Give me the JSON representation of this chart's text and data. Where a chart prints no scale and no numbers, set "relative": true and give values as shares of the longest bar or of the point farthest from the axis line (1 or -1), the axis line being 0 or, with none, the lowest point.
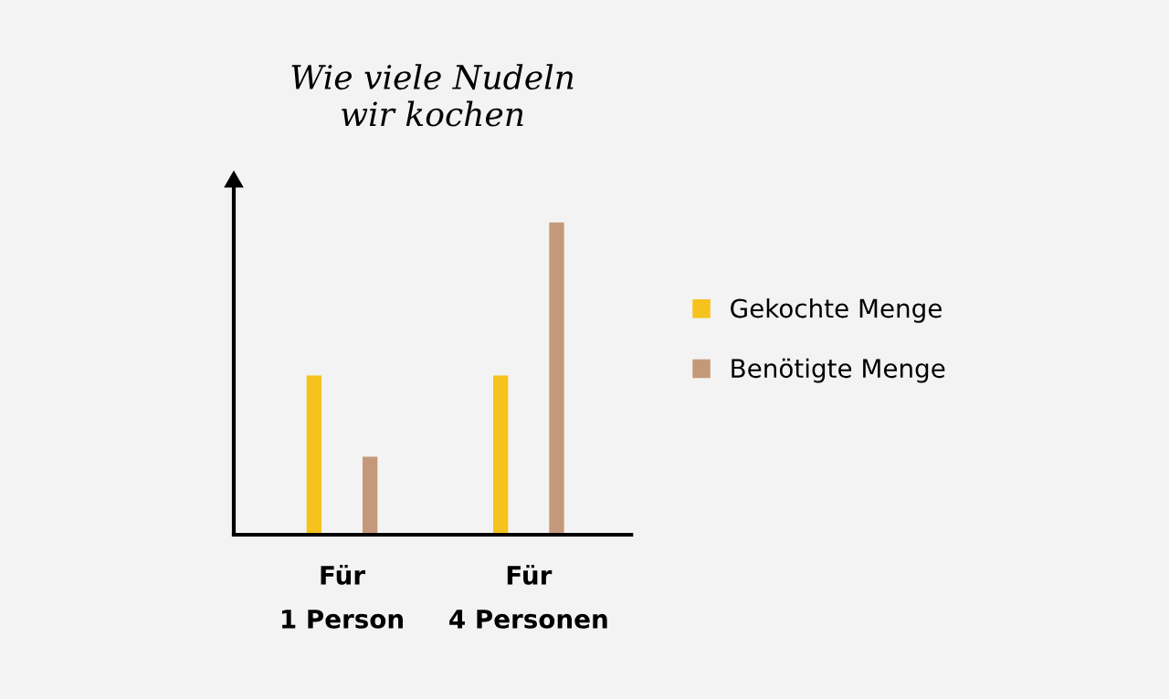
{
  "chart_data": {
    "type": "bar",
    "title": "Wie viele Nudeln\nwir kochen",
    "relative": true,
    "categories": [
      "Für\n1 Person",
      "Für\n4 Personen"
    ],
    "series": [
      {
        "name": "Gekochte Menge",
        "color": "#f6c21c",
        "values": [
          0.51,
          0.51
        ]
      },
      {
        "name": "Benötigte Menge",
        "color": "#c4997a",
        "values": [
          0.25,
          1
        ]
      }
    ],
    "legend": "right",
    "grid": false
  }
}
